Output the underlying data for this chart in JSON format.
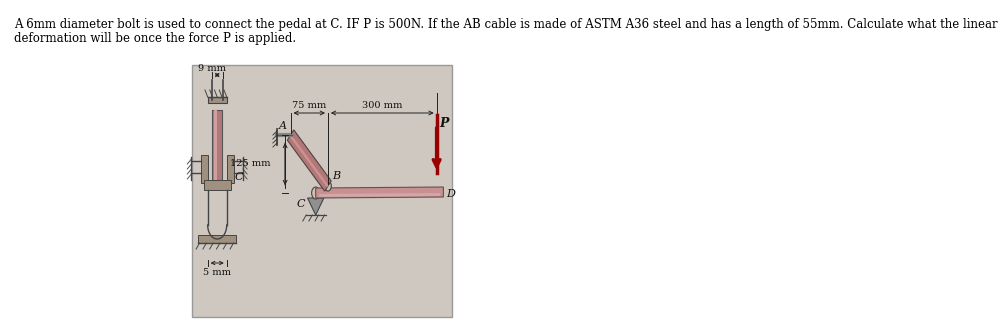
{
  "text_line1": "A 6mm diameter bolt is used to connect the pedal at C. IF P is 500N. If the AB cable is made of ASTM A36 steel and has a length of 55mm. Calculate what the linear",
  "text_line2": "deformation will be once the force P is applied.",
  "text_color": "#000000",
  "bg_color": "#ffffff",
  "diagram_bg": "#cec8c0",
  "diagram_border": "#999999",
  "cable_color": "#b07878",
  "cable_light": "#c89090",
  "metal_color": "#a09080",
  "metal_dark": "#807060",
  "force_color": "#990000",
  "text_fontsize": 8.5,
  "label_9mm": "9 mm",
  "label_5mm": "5 mm",
  "label_75mm": "75 mm",
  "label_300mm": "300 mm",
  "label_125mm": "125 mm",
  "label_A": "A",
  "label_B": "B",
  "label_C": "C",
  "label_D": "D",
  "label_P": "P"
}
